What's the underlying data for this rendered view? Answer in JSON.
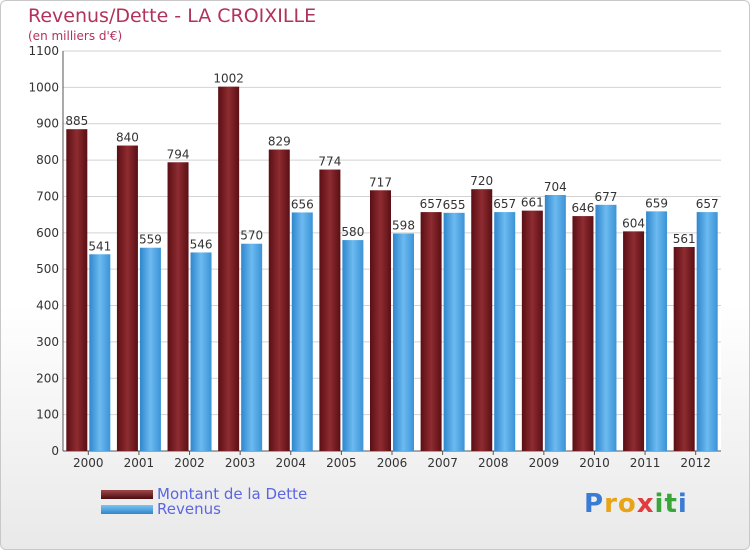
{
  "header": {
    "title": "Revenus/Dette - LA CROIXILLE",
    "subtitle": "(en milliers d'€)"
  },
  "legend": {
    "items": [
      {
        "label": "Montant de la Dette",
        "color": "#6b1a1e"
      },
      {
        "label": "Revenus",
        "color": "#4aa3e3"
      }
    ]
  },
  "logo": {
    "text": "Proxiti",
    "letters": [
      {
        "ch": "P",
        "color": "#3a7bd5"
      },
      {
        "ch": "r",
        "color": "#e8a317"
      },
      {
        "ch": "o",
        "color": "#e8a317"
      },
      {
        "ch": "x",
        "color": "#e23b3b"
      },
      {
        "ch": "i",
        "color": "#3aa63a"
      },
      {
        "ch": "t",
        "color": "#3aa63a"
      },
      {
        "ch": "i",
        "color": "#3a7bd5"
      }
    ]
  },
  "chart_data": {
    "type": "bar",
    "title": "Revenus/Dette - LA CROIXILLE",
    "subtitle": "(en milliers d'€)",
    "categories": [
      "2000",
      "2001",
      "2002",
      "2003",
      "2004",
      "2005",
      "2006",
      "2007",
      "2008",
      "2009",
      "2010",
      "2011",
      "2012"
    ],
    "series": [
      {
        "name": "Montant de la Dette",
        "color": "#6b1a1e",
        "values": [
          885,
          840,
          794,
          1002,
          829,
          774,
          717,
          657,
          720,
          661,
          646,
          604,
          561
        ]
      },
      {
        "name": "Revenus",
        "color": "#4aa3e3",
        "values": [
          541,
          559,
          546,
          570,
          656,
          580,
          598,
          655,
          657,
          704,
          677,
          659,
          657
        ]
      }
    ],
    "ylim": [
      0,
      1100
    ],
    "yticks": [
      0,
      100,
      200,
      300,
      400,
      500,
      600,
      700,
      800,
      900,
      1000,
      1100
    ],
    "grid": true,
    "legend_position": "bottom-left"
  }
}
